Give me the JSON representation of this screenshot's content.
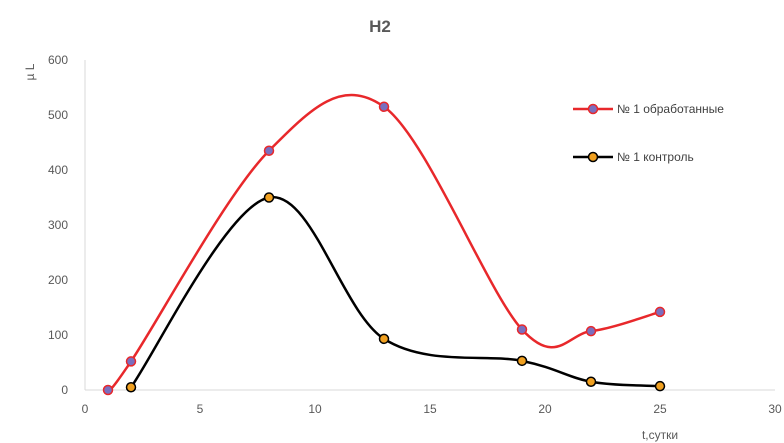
{
  "chart_data": {
    "type": "scatter",
    "title": "H2",
    "xlabel": "t,сутки",
    "ylabel": "µ L",
    "xlim": [
      0,
      30
    ],
    "ylim": [
      0,
      600
    ],
    "xticks": [
      0,
      5,
      10,
      15,
      20,
      25,
      30
    ],
    "yticks": [
      0,
      100,
      200,
      300,
      400,
      500,
      600
    ],
    "grid": false,
    "smooth": true,
    "legend_position": "right",
    "series": [
      {
        "name": "№ 1 обработанные",
        "color": "#e8282b",
        "marker_color": "#7a6fbf",
        "x": [
          1,
          2,
          8,
          13,
          19,
          22,
          25
        ],
        "y": [
          0,
          52,
          435,
          515,
          110,
          107,
          142
        ]
      },
      {
        "name": "№ 1 контроль",
        "color": "#000000",
        "marker_color": "#f0a020",
        "x": [
          2,
          8,
          13,
          19,
          22,
          25
        ],
        "y": [
          5,
          350,
          93,
          53,
          15,
          7
        ]
      }
    ]
  }
}
